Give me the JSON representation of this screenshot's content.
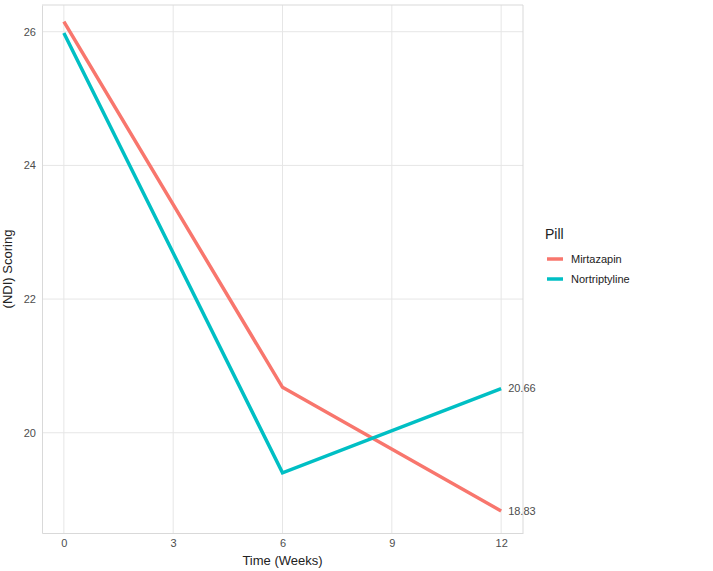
{
  "chart_data": {
    "type": "line",
    "x_label": "Time (Weeks)",
    "y_label": "(NDI) Scoring",
    "x": [
      0,
      6,
      12
    ],
    "series": [
      {
        "name": "Mirtazapin",
        "color": "#F8766D",
        "values": [
          26.15,
          20.68,
          18.83
        ]
      },
      {
        "name": "Nortriptyline",
        "color": "#00BFC4",
        "values": [
          25.98,
          19.4,
          20.66
        ]
      }
    ],
    "xlim": [
      -0.6,
      12.6
    ],
    "xticks": [
      0,
      3,
      6,
      9,
      12
    ],
    "ylim": [
      18.5,
      26.4
    ],
    "yticks": [
      20,
      22,
      24,
      26
    ],
    "grid": true,
    "legend": "right",
    "legend_title": "Pill",
    "annotations": [
      {
        "x": 12,
        "y": 20.66,
        "text": "20.66"
      },
      {
        "x": 12,
        "y": 18.83,
        "text": "18.83"
      }
    ]
  }
}
